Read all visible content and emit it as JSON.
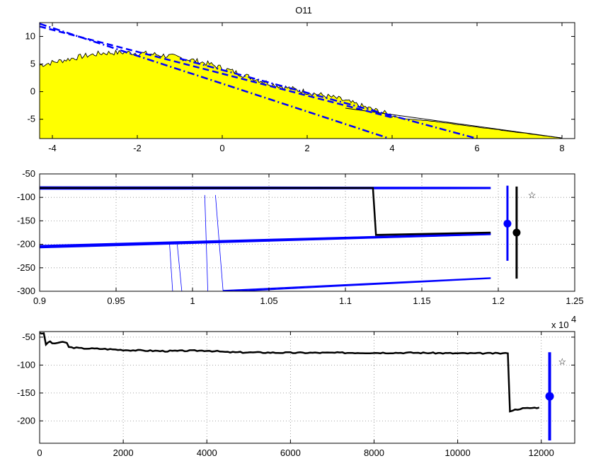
{
  "chart_data": [
    {
      "type": "area",
      "title": "O11",
      "xlim": [
        -4.3,
        8.3
      ],
      "ylim": [
        -8.5,
        12.5
      ],
      "xticks": [
        "-4",
        "-2",
        "0",
        "2",
        "4",
        "6",
        "8"
      ],
      "yticks": [
        "-5",
        "0",
        "5",
        "10"
      ],
      "grid": false,
      "fill_color": "#ffff00",
      "density_envelope": {
        "x": [
          -4.3,
          -3.8,
          -3.3,
          -2.8,
          -2.3,
          -1.8,
          -1.3,
          -0.8,
          -0.3,
          0.2,
          0.7,
          1.2,
          1.7,
          2.2,
          2.7,
          3.2,
          3.7,
          4.2,
          5.0,
          6.0,
          7.0,
          8.0
        ],
        "y": [
          4.8,
          5.6,
          6.4,
          7.0,
          7.1,
          6.9,
          6.5,
          5.9,
          5.0,
          3.8,
          2.5,
          1.3,
          0.4,
          -0.4,
          -1.2,
          -2.4,
          -3.6,
          -4.8,
          -5.4,
          -6.4,
          -7.4,
          -8.4
        ]
      },
      "tail_line": {
        "x": [
          2.9,
          8.0
        ],
        "y": [
          -3.0,
          -8.4
        ]
      },
      "fit_lines": [
        {
          "style": "dash-dot",
          "color": "#0000ff",
          "x": [
            -4.3,
            3.9
          ],
          "y": [
            12.3,
            -8.4
          ]
        },
        {
          "style": "dash",
          "color": "#0000ff",
          "x": [
            -4.3,
            4.0
          ],
          "y": [
            11.8,
            -4.7
          ]
        },
        {
          "style": "dash-dot",
          "color": "#0000ff",
          "x": [
            -1.0,
            6.0
          ],
          "y": [
            6.0,
            -8.5
          ]
        }
      ]
    },
    {
      "type": "line",
      "xlim": [
        0.9,
        1.25
      ],
      "ylim": [
        -300,
        -50
      ],
      "xticks": [
        "0.9",
        "0.95",
        "1",
        "1.05",
        "1.1",
        "1.15",
        "1.2",
        "1.25"
      ],
      "yticks": [
        "-50",
        "-100",
        "-150",
        "-200",
        "-250",
        "-300"
      ],
      "grid": true,
      "blue_bundles": [
        {
          "x": [
            0.9,
            1.195
          ],
          "y": [
            -80,
            -80
          ],
          "count": 8,
          "spread": 6
        },
        {
          "x": [
            0.9,
            1.195
          ],
          "y": [
            -205,
            -178
          ],
          "count": 10,
          "spread": 6
        },
        {
          "x": [
            1.02,
            1.195
          ],
          "y": [
            -300,
            -272
          ],
          "count": 6,
          "spread": 4
        }
      ],
      "blue_verticals": [
        {
          "x": [
            1.008,
            1.01
          ],
          "y": [
            -95,
            -300
          ]
        },
        {
          "x": [
            1.015,
            1.02
          ],
          "y": [
            -95,
            -300
          ]
        },
        {
          "x": [
            0.985,
            0.987
          ],
          "y": [
            -200,
            -300
          ]
        },
        {
          "x": [
            0.99,
            0.993
          ],
          "y": [
            -200,
            -300
          ]
        }
      ],
      "black_trace": {
        "x": [
          0.9,
          1.118,
          1.12,
          1.195
        ],
        "y": [
          -80,
          -80,
          -180,
          -175
        ]
      },
      "intervals": [
        {
          "color": "#0000ff",
          "x": 1.206,
          "center": -156,
          "low": -235,
          "high": -75
        },
        {
          "color": "#000000",
          "x": 1.212,
          "center": -175,
          "low": -273,
          "high": -77
        }
      ],
      "star": {
        "color": "#0000ff",
        "x": 1.222,
        "y": -93
      }
    },
    {
      "type": "line",
      "xlim": [
        0,
        12800
      ],
      "ylim": [
        -240,
        -40
      ],
      "xticks": [
        "0",
        "2000",
        "4000",
        "6000",
        "8000",
        "10000",
        "12000"
      ],
      "yticks": [
        "-50",
        "-100",
        "-150",
        "-200"
      ],
      "exponent_label": "x 10",
      "exponent_power": "4",
      "grid": true,
      "trace": {
        "x": [
          0,
          100,
          150,
          250,
          300,
          500,
          650,
          700,
          1000,
          1500,
          2000,
          3000,
          4000,
          4500,
          6000,
          7000,
          9000,
          10000,
          11200,
          11250,
          11500,
          11950
        ],
        "y": [
          -42,
          -44,
          -63,
          -57,
          -62,
          -59,
          -60,
          -68,
          -70,
          -71,
          -73,
          -75,
          -74,
          -77,
          -78,
          -78,
          -78,
          -79,
          -79,
          -182,
          -178,
          -176
        ]
      },
      "interval": {
        "color": "#0000ff",
        "x": 12200,
        "center": -156,
        "low": -235,
        "high": -77
      },
      "star": {
        "color": "#0000ff",
        "x": 12500,
        "y": -93
      }
    }
  ]
}
